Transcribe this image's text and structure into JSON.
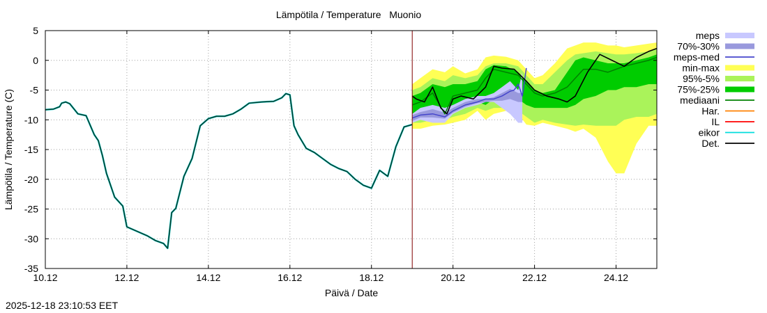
{
  "timestamp": "2025-12-18 23:10:53 EET",
  "chart_data": {
    "type": "line",
    "title": "Lämpötila / Temperature   Muonio",
    "xlabel": "Päivä / Date",
    "ylabel": "Lämpötila / Temperature (C)",
    "ylim": [
      -35,
      5
    ],
    "yticks": [
      5,
      0,
      -5,
      -10,
      -15,
      -20,
      -25,
      -30,
      -35
    ],
    "ytick_labels": [
      "5",
      "0",
      "-5",
      "-10",
      "-15",
      "-20",
      "-25",
      "-30",
      "-35"
    ],
    "xlim": [
      0,
      15
    ],
    "xticks": [
      0,
      2,
      4,
      6,
      8,
      10,
      12,
      14
    ],
    "xtick_labels": [
      "10.12",
      "12.12",
      "14.12",
      "16.12",
      "18.12",
      "20.12",
      "22.12",
      "24.12"
    ],
    "grid": true,
    "now_x": 9.0,
    "colors": {
      "meps": "#c8c8ff",
      "p70_30": "#9999dd",
      "meps_med": "#4444cc",
      "minmax": "#ffff55",
      "p95_5": "#aaf35a",
      "p75_25": "#00cc00",
      "mediaani": "#008000",
      "har": "#ff8000",
      "il": "#ff0000",
      "eikor": "#00dddd",
      "det": "#000000",
      "nowline": "#800000"
    },
    "legend": [
      {
        "key": "meps",
        "label": "meps",
        "style": "band"
      },
      {
        "key": "p70_30",
        "label": "70%-30%",
        "style": "band"
      },
      {
        "key": "meps_med",
        "label": "meps-med",
        "style": "line"
      },
      {
        "key": "minmax",
        "label": "min-max",
        "style": "band"
      },
      {
        "key": "p95_5",
        "label": "95%-5%",
        "style": "band"
      },
      {
        "key": "p75_25",
        "label": "75%-25%",
        "style": "band"
      },
      {
        "key": "mediaani",
        "label": "mediaani",
        "style": "line"
      },
      {
        "key": "har",
        "label": "Har.",
        "style": "line"
      },
      {
        "key": "il",
        "label": "IL",
        "style": "line"
      },
      {
        "key": "eikor",
        "label": "eikor",
        "style": "line"
      },
      {
        "key": "det",
        "label": "Det.",
        "style": "line"
      }
    ],
    "observed": {
      "x": [
        0,
        0.2,
        0.35,
        0.4,
        0.5,
        0.6,
        0.8,
        1.0,
        1.2,
        1.3,
        1.4,
        1.5,
        1.7,
        1.9,
        2.0,
        2.1,
        2.3,
        2.5,
        2.7,
        2.9,
        3.0,
        3.1,
        3.2,
        3.4,
        3.6,
        3.8,
        4.0,
        4.2,
        4.4,
        4.6,
        4.8,
        5.0,
        5.3,
        5.6,
        5.8,
        5.9,
        6.0,
        6.1,
        6.2,
        6.4,
        6.6,
        6.8,
        7.0,
        7.2,
        7.4,
        7.6,
        7.8,
        8.0,
        8.2,
        8.4,
        8.6,
        8.8,
        9.0
      ],
      "y": [
        -8.3,
        -8.2,
        -7.8,
        -7.2,
        -7.0,
        -7.3,
        -9.0,
        -9.3,
        -12.5,
        -13.5,
        -16,
        -19,
        -23,
        -24.5,
        -28,
        -28.3,
        -28.9,
        -29.5,
        -30.3,
        -30.8,
        -31.6,
        -25.6,
        -24.9,
        -19.5,
        -16.5,
        -11.0,
        -9.8,
        -9.4,
        -9.4,
        -9.0,
        -8.2,
        -7.2,
        -7.0,
        -6.9,
        -6.3,
        -5.6,
        -5.8,
        -11.0,
        -12.5,
        -14.8,
        -15.5,
        -16.5,
        -17.5,
        -18.2,
        -18.7,
        -20.0,
        -21.0,
        -21.5,
        -18.5,
        -19.5,
        -14.5,
        -11.2,
        -10.8
      ]
    },
    "minmax": {
      "x": [
        9.0,
        9.2,
        9.5,
        9.8,
        10.0,
        10.3,
        10.6,
        10.8,
        11.0,
        11.3,
        11.6,
        11.8,
        12.0,
        12.2,
        12.5,
        12.8,
        13.0,
        13.2,
        13.5,
        13.8,
        14.0,
        14.2,
        14.5,
        14.8,
        15.0
      ],
      "upper": [
        -4.0,
        -3.0,
        -1.5,
        -2.0,
        -1.0,
        -2.2,
        -1.5,
        0.5,
        0.8,
        0.6,
        0.0,
        -1.5,
        -3.0,
        -2.5,
        -0.5,
        2.0,
        2.5,
        3.0,
        3.0,
        2.5,
        2.5,
        2.2,
        2.5,
        2.8,
        3.0
      ],
      "lower": [
        -11.5,
        -11.5,
        -11.0,
        -10.8,
        -10.5,
        -10.0,
        -8.5,
        -10.0,
        -9.0,
        -8.5,
        -9.0,
        -10.8,
        -11.0,
        -10.5,
        -11.0,
        -11.5,
        -12.0,
        -11.5,
        -13.0,
        -17.0,
        -19.0,
        -19.0,
        -14.0,
        -11.0,
        -11.0
      ]
    },
    "p95_5": {
      "x": [
        9.0,
        9.2,
        9.5,
        9.8,
        10.0,
        10.3,
        10.6,
        10.8,
        11.0,
        11.3,
        11.6,
        11.8,
        12.0,
        12.2,
        12.5,
        12.8,
        13.0,
        13.2,
        13.5,
        13.8,
        14.0,
        14.2,
        14.5,
        14.8,
        15.0
      ],
      "upper": [
        -5.0,
        -4.5,
        -3.0,
        -3.5,
        -2.5,
        -3.0,
        -2.5,
        -1.0,
        -0.5,
        -0.5,
        -1.0,
        -2.5,
        -4.0,
        -4.0,
        -2.0,
        0.0,
        1.0,
        1.2,
        1.5,
        1.2,
        1.0,
        1.0,
        1.2,
        1.5,
        2.0
      ],
      "lower": [
        -10.5,
        -10.5,
        -10.0,
        -10.0,
        -9.5,
        -9.0,
        -8.0,
        -8.5,
        -8.0,
        -8.0,
        -8.5,
        -9.5,
        -10.5,
        -10.0,
        -10.5,
        -10.8,
        -11.0,
        -10.8,
        -11.0,
        -11.0,
        -11.0,
        -10.0,
        -9.5,
        -9.5,
        -9.0
      ]
    },
    "p75_25": {
      "x": [
        9.0,
        9.2,
        9.5,
        9.8,
        10.0,
        10.3,
        10.6,
        10.8,
        11.0,
        11.3,
        11.6,
        11.8,
        12.0,
        12.2,
        12.5,
        12.8,
        13.0,
        13.2,
        13.5,
        13.8,
        14.0,
        14.2,
        14.5,
        14.8,
        15.0
      ],
      "upper": [
        -6.0,
        -5.5,
        -4.0,
        -4.5,
        -4.0,
        -4.0,
        -3.5,
        -1.5,
        -0.8,
        -1.0,
        -2.0,
        -3.5,
        -5.0,
        -5.5,
        -5.0,
        -2.0,
        0.0,
        0.5,
        0.0,
        -0.5,
        -0.5,
        -0.5,
        0.0,
        0.5,
        1.0
      ],
      "lower": [
        -9.5,
        -9.5,
        -9.0,
        -9.5,
        -8.5,
        -8.0,
        -7.0,
        -7.5,
        -6.5,
        -6.0,
        -6.5,
        -7.5,
        -8.0,
        -8.0,
        -8.0,
        -8.0,
        -7.5,
        -6.5,
        -6.0,
        -5.0,
        -5.0,
        -4.5,
        -4.5,
        -4.0,
        -4.0
      ]
    },
    "meps": {
      "x": [
        9.0,
        9.2,
        9.5,
        9.8,
        10.0,
        10.3,
        10.6,
        10.8,
        11.0,
        11.2,
        11.4,
        11.6,
        11.7
      ],
      "upper": [
        -9.0,
        -8.0,
        -7.5,
        -8.0,
        -7.5,
        -6.5,
        -6.0,
        -6.0,
        -5.5,
        -4.5,
        -3.5,
        -5.0,
        -2.0
      ],
      "lower": [
        -10.5,
        -10.0,
        -10.5,
        -10.5,
        -9.0,
        -8.0,
        -7.5,
        -7.0,
        -7.0,
        -8.0,
        -9.0,
        -10.5,
        -10.5
      ]
    },
    "p70_30": {
      "x": [
        9.0,
        9.2,
        9.5,
        9.8,
        10.0,
        10.3,
        10.6,
        10.8,
        11.0,
        11.2,
        11.4,
        11.6,
        11.7
      ],
      "upper": [
        -9.2,
        -8.7,
        -8.2,
        -8.8,
        -8.0,
        -7.0,
        -6.5,
        -6.5,
        -6.2,
        -5.5,
        -4.8,
        -5.5,
        -5.5
      ],
      "lower": [
        -10.2,
        -9.6,
        -9.6,
        -9.8,
        -8.8,
        -7.8,
        -7.2,
        -7.0,
        -6.8,
        -6.8,
        -6.5,
        -7.0,
        -7.0
      ]
    },
    "meps_med": {
      "x": [
        9.0,
        9.2,
        9.5,
        9.8,
        10.0,
        10.3,
        10.6,
        10.8,
        11.0,
        11.2,
        11.4,
        11.5,
        11.6,
        11.7,
        11.8
      ],
      "y": [
        -9.7,
        -9.2,
        -9.0,
        -9.5,
        -8.5,
        -7.5,
        -7.0,
        -6.5,
        -6.5,
        -6.0,
        -5.2,
        -5.0,
        -4.0,
        -6.0,
        -1.3
      ]
    },
    "mediaani": {
      "x": [
        9.0,
        9.2,
        9.5,
        9.8,
        10.0,
        10.3,
        10.6,
        10.8,
        11.0,
        11.3,
        11.6,
        11.8,
        12.0,
        12.2,
        12.5,
        12.8,
        13.0,
        13.2,
        13.5,
        13.8,
        14.0,
        14.2,
        14.5,
        14.8,
        15.0
      ],
      "y": [
        -7.5,
        -7.0,
        -5.5,
        -9.0,
        -6.0,
        -5.5,
        -5.0,
        -3.0,
        -1.5,
        -2.0,
        -2.5,
        -4.0,
        -5.5,
        -6.0,
        -5.5,
        -4.5,
        -3.0,
        -1.5,
        -1.5,
        -2.0,
        -1.5,
        -1.0,
        -0.5,
        0.0,
        0.5
      ]
    },
    "det": {
      "x": [
        9.0,
        9.1,
        9.3,
        9.5,
        9.7,
        9.85,
        10.0,
        10.2,
        10.5,
        10.8,
        11.0,
        11.2,
        11.5,
        11.8,
        12.0,
        12.3,
        12.6,
        12.8,
        13.0,
        13.3,
        13.6,
        13.9,
        14.2,
        14.5,
        14.8,
        15.0
      ],
      "y": [
        -6.0,
        -6.5,
        -7.0,
        -4.5,
        -8.0,
        -9.0,
        -6.5,
        -6.0,
        -6.5,
        -4.5,
        -1.0,
        -1.3,
        -1.5,
        -3.5,
        -5.0,
        -6.0,
        -6.5,
        -7.0,
        -6.0,
        -2.0,
        1.0,
        0.0,
        -1.0,
        0.5,
        1.5,
        2.0
      ]
    }
  }
}
